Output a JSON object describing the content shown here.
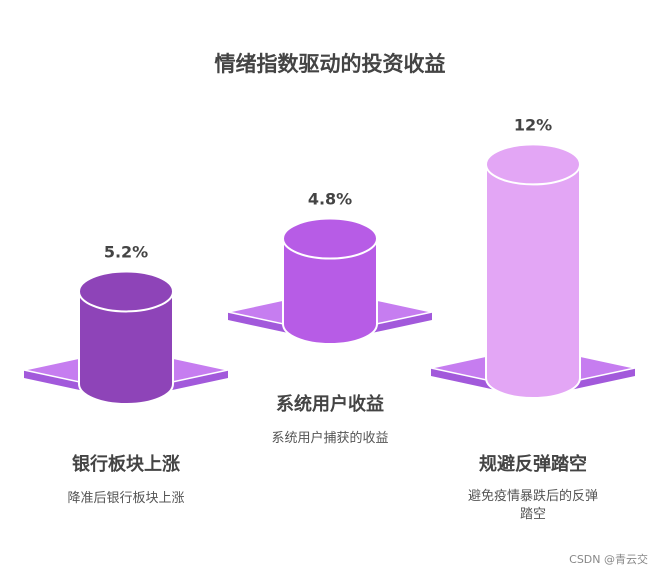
{
  "title": "情绪指数驱动的投资收益",
  "watermark": "CSDN @青云交",
  "colors": {
    "platform_top": "#c67df0",
    "platform_side": "#a259db",
    "platform_stroke": "#ffffff",
    "text_dark": "#444444",
    "text_sub": "#555555"
  },
  "chart_data": {
    "type": "bar",
    "categories": [
      "银行板块上涨",
      "系统用户收益",
      "规避反弹踏空"
    ],
    "values": [
      5.2,
      4.8,
      12
    ],
    "value_labels": [
      "5.2%",
      "4.8%",
      "12%"
    ],
    "descriptions": [
      "降准后银行板块上涨",
      "系统用户捕获的收益",
      "避免疫情暴跌后的反弹踏空"
    ],
    "bar_colors": [
      "#8e44b8",
      "#b75ce6",
      "#e3a6f5"
    ],
    "unit": "%"
  }
}
